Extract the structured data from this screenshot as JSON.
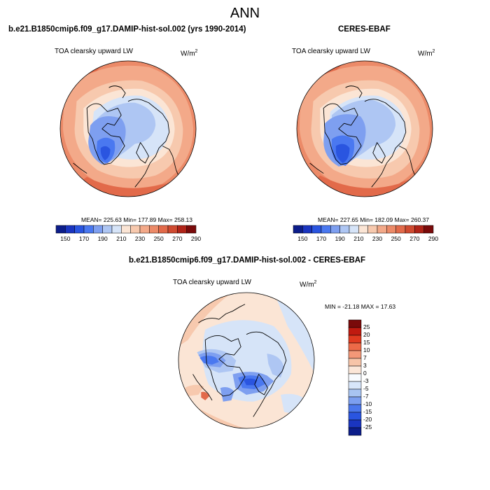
{
  "title": "ANN",
  "panels": [
    {
      "title": "b.e21.B1850cmip6.f09_g17.DAMIP-hist-sol.002 (yrs 1990-2014)",
      "variable": "TOA clearsky upward LW",
      "units_base": "W/m",
      "units_exp": "2",
      "stats": "MEAN= 225.63  Min= 177.89  Max= 258.13"
    },
    {
      "title": "CERES-EBAF",
      "variable": "TOA clearsky upward LW",
      "units_base": "W/m",
      "units_exp": "2",
      "stats": "MEAN= 227.65  Min= 182.09  Max= 260.37"
    },
    {
      "title": "b.e21.B1850cmip6.f09_g17.DAMIP-hist-sol.002 - CERES-EBAF",
      "variable": "TOA clearsky upward LW",
      "units_base": "W/m",
      "units_exp": "2",
      "stats": "MIN = -21.18  MAX =  17.63"
    }
  ],
  "colorbar_main": {
    "colors": [
      "#0c1d8a",
      "#1a35c0",
      "#2a55e0",
      "#4a78f0",
      "#7e9ff0",
      "#aec6f3",
      "#d6e4f8",
      "#fbe5d5",
      "#f7c9ae",
      "#f3a989",
      "#ec8a68",
      "#e26a4a",
      "#cf4a30",
      "#b02418",
      "#7a0a0a"
    ],
    "labels": [
      "150",
      "170",
      "190",
      "210",
      "230",
      "250",
      "270",
      "290"
    ]
  },
  "colorbar_diff": {
    "colors": [
      "#7a0a0a",
      "#c01a10",
      "#e03a20",
      "#ed6a48",
      "#f39878",
      "#f7c4a8",
      "#fbe6d8",
      "#f8fbff",
      "#d8e6fa",
      "#a8c4f2",
      "#7c9ff0",
      "#4b77ec",
      "#2a55e0",
      "#1a35c0",
      "#0c1d8a"
    ],
    "labels": [
      "25",
      "20",
      "15",
      "10",
      "7",
      "3",
      "0",
      "-3",
      "-5",
      "-7",
      "-10",
      "-15",
      "-20",
      "-25"
    ]
  },
  "map_colors": {
    "c_outer": "#ec8a68",
    "c_warm": "#f3a989",
    "c_mid": "#f7c9ae",
    "c_light": "#fbe5d5",
    "c_pale": "#d6e4f8",
    "c_cool": "#aec6f3",
    "c_cold": "#7e9ff0",
    "c_colder": "#4a78f0",
    "c_coldest": "#2a55e0",
    "c_hot": "#e26a4a"
  }
}
